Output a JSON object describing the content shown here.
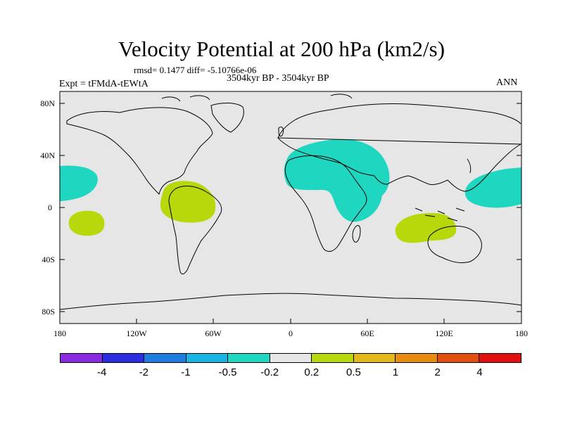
{
  "header": {
    "title": "Velocity Potential at 200 hPa (km2/s)",
    "stats": "rmsd= 0.1477  diff= -5.10766e-06",
    "experiment": "Expt = tFMdA-tEWtA",
    "period": "3504kyr BP - 3504kyr BP",
    "season": "ANN"
  },
  "axes": {
    "lat_labels": [
      "80N",
      "40N",
      "0",
      "40S",
      "80S"
    ],
    "lon_labels": [
      "180",
      "120W",
      "60W",
      "0",
      "60E",
      "120E",
      "180"
    ]
  },
  "colorbar": {
    "colors": [
      "#8a2be2",
      "#2d2de0",
      "#1e7ee0",
      "#19b4e6",
      "#1fd6c0",
      "#e6e6e6",
      "#b8d80c",
      "#e2b81a",
      "#e88c10",
      "#e25010",
      "#e01010"
    ],
    "labels": [
      "-4",
      "-2",
      "-1",
      "-0.5",
      "-0.2",
      "0.2",
      "0.5",
      "1",
      "2",
      "4"
    ]
  },
  "colors": {
    "background": "#e6e6e6",
    "negative": "#1fd6c0",
    "positive": "#b8d80c"
  }
}
